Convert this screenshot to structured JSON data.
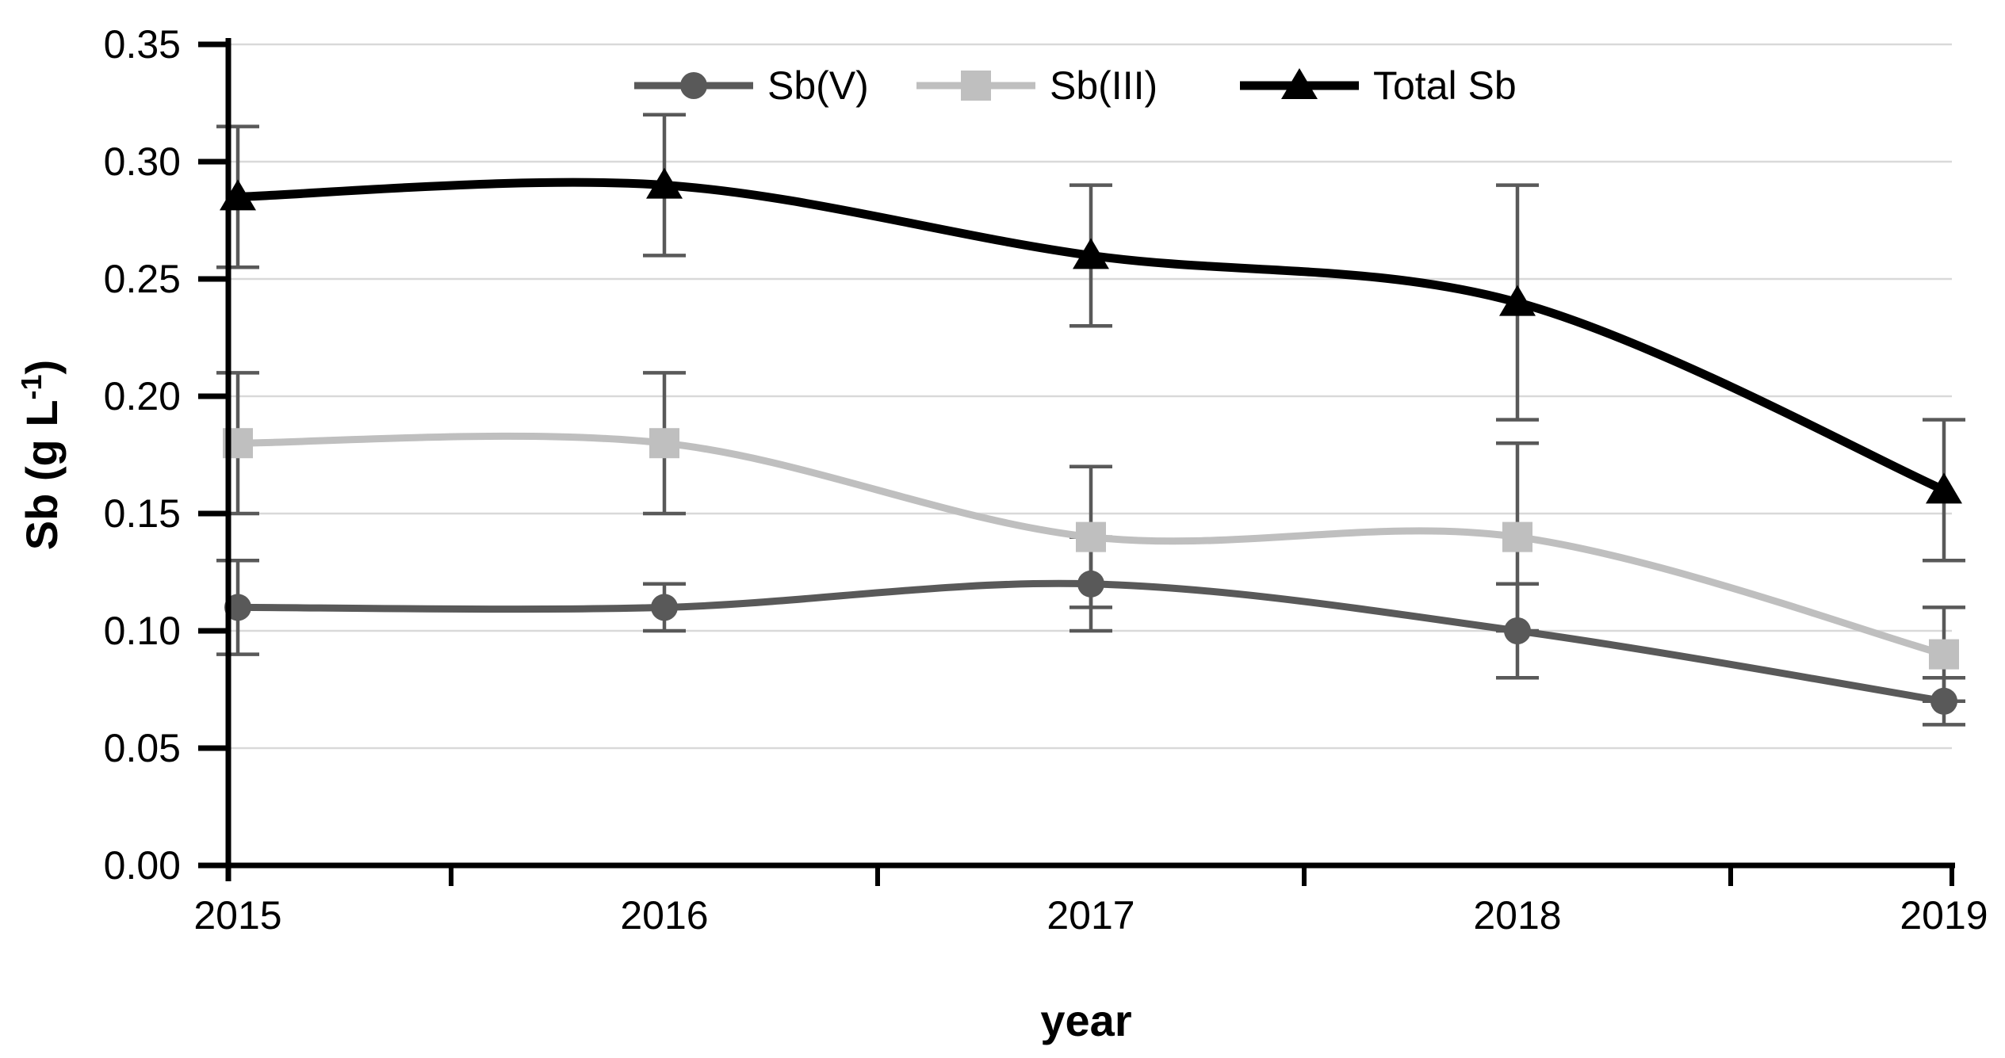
{
  "chart_data": {
    "type": "line",
    "title": "",
    "xlabel": "year",
    "ylabel": "Sb (g L⁻¹)",
    "ylabel_parts": {
      "pre": "Sb (g L",
      "sup": "-1",
      "post": ")"
    },
    "x_categories": [
      "2015",
      "2016",
      "2017",
      "2018",
      "2019"
    ],
    "ylim": [
      0,
      0.35
    ],
    "ytick_step": 0.05,
    "ytick_labels": [
      "0.00",
      "0.05",
      "0.10",
      "0.15",
      "0.20",
      "0.25",
      "0.30",
      "0.35"
    ],
    "grid": "horizontal",
    "gridline_color": "#d9d9d9",
    "axis_color": "#000000",
    "error_bar_color": "#595959",
    "smooth": true,
    "legend_position": "top-center",
    "series": [
      {
        "name": "Sb(V)",
        "marker": "circle",
        "color": "#595959",
        "line_width": 9,
        "values": [
          0.11,
          0.11,
          0.12,
          0.1,
          0.07
        ],
        "errors": [
          0.02,
          0.01,
          0.02,
          0.02,
          0.01
        ]
      },
      {
        "name": "Sb(III)",
        "marker": "square",
        "color": "#bfbfbf",
        "line_width": 9,
        "values": [
          0.18,
          0.18,
          0.14,
          0.14,
          0.09
        ],
        "errors": [
          0.03,
          0.03,
          0.03,
          0.04,
          0.02
        ]
      },
      {
        "name": "Total Sb",
        "marker": "triangle",
        "color": "#000000",
        "line_width": 11,
        "values": [
          0.285,
          0.29,
          0.26,
          0.24,
          0.16
        ],
        "errors": [
          0.03,
          0.03,
          0.03,
          0.05,
          0.03
        ]
      }
    ]
  }
}
